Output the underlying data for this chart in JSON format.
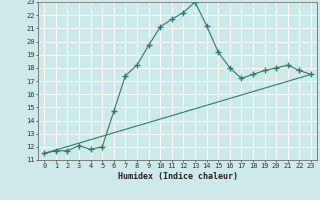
{
  "xlabel": "Humidex (Indice chaleur)",
  "bg_color": "#cee9e9",
  "grid_color": "#ffffff",
  "line_color": "#2d7a6e",
  "xlim": [
    -0.5,
    23.5
  ],
  "ylim": [
    11,
    23
  ],
  "xticks": [
    0,
    1,
    2,
    3,
    4,
    5,
    6,
    7,
    8,
    9,
    10,
    11,
    12,
    13,
    14,
    15,
    16,
    17,
    18,
    19,
    20,
    21,
    22,
    23
  ],
  "yticks": [
    11,
    12,
    13,
    14,
    15,
    16,
    17,
    18,
    19,
    20,
    21,
    22,
    23
  ],
  "curve1_x": [
    0,
    1,
    2,
    3,
    4,
    5,
    6,
    7,
    8,
    9,
    10,
    11,
    12,
    13,
    14,
    15,
    16,
    17,
    18,
    19,
    20,
    21,
    22,
    23
  ],
  "curve1_y": [
    11.5,
    11.7,
    11.7,
    12.1,
    11.8,
    12.0,
    14.7,
    17.4,
    18.2,
    19.7,
    21.1,
    21.7,
    22.2,
    23.0,
    21.2,
    19.2,
    18.0,
    17.2,
    17.5,
    17.8,
    18.0,
    18.2,
    17.8,
    17.5
  ],
  "curve2_x": [
    0,
    23
  ],
  "curve2_y": [
    11.5,
    17.5
  ],
  "tick_fontsize": 5.0,
  "xlabel_fontsize": 6.0
}
